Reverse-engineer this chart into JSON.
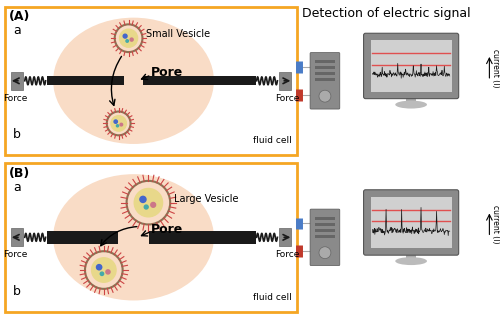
{
  "title_A": "(A)",
  "title_B": "(B)",
  "detection_title": "Detection of electric signal",
  "panel_A_label_vesicle": "Small Vesicle",
  "panel_B_label_vesicle": "Large Vesicle",
  "pore_label": "Pore",
  "force_label": "Force",
  "fluid_cell_label": "fluid cell",
  "current_label": "current (I)",
  "label_a": "a",
  "label_b": "b",
  "orange_border": "#F5A623",
  "bg_color": "#ffffff",
  "pore_glow_color": "#F5C0A0",
  "membrane_color": "#1a1a1a",
  "electrode_blue": "#4a7cc7",
  "electrode_red": "#c0392b",
  "computer_body": "#8a8a8a",
  "red_line_color": "#e05050",
  "signal_color": "#1a1a1a",
  "arrow_color": "#1a1a1a"
}
